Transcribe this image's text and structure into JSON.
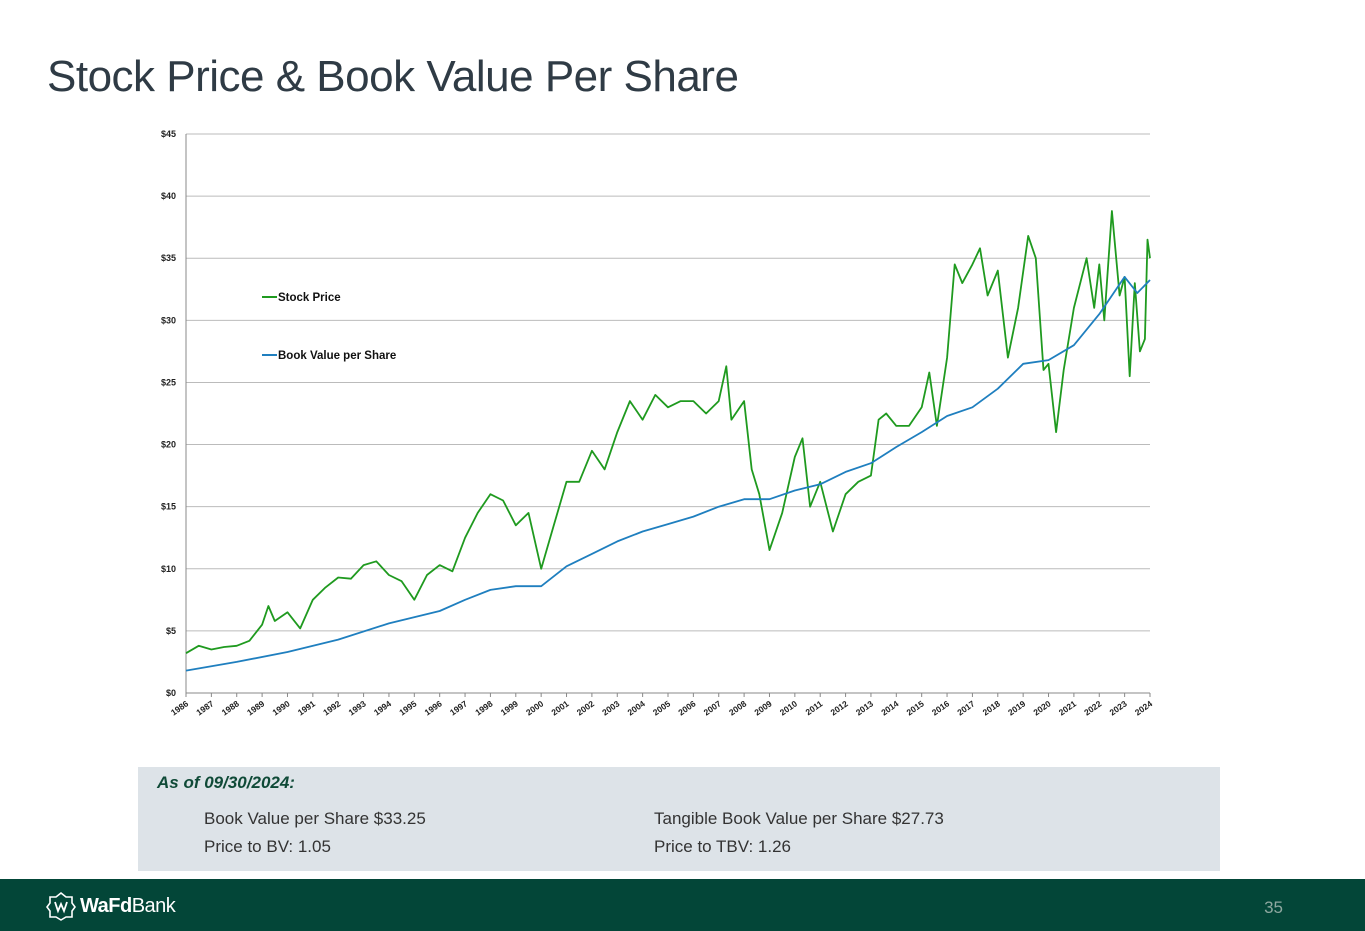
{
  "header": {
    "title": "Stock Price & Book Value Per Share"
  },
  "chart_data": {
    "type": "line",
    "xlim": [
      1986,
      2024
    ],
    "xticks": [
      1986,
      1987,
      1988,
      1989,
      1990,
      1991,
      1992,
      1993,
      1994,
      1995,
      1996,
      1997,
      1998,
      1999,
      2000,
      2001,
      2002,
      2003,
      2004,
      2005,
      2006,
      2007,
      2008,
      2009,
      2010,
      2011,
      2012,
      2013,
      2014,
      2015,
      2016,
      2017,
      2018,
      2019,
      2020,
      2021,
      2022,
      2023,
      2024
    ],
    "ylim": [
      0,
      45
    ],
    "yticks": [
      {
        "value": 0,
        "label": "$0"
      },
      {
        "value": 5,
        "label": "$5"
      },
      {
        "value": 10,
        "label": "$10"
      },
      {
        "value": 15,
        "label": "$15"
      },
      {
        "value": 20,
        "label": "$20"
      },
      {
        "value": 25,
        "label": "$25"
      },
      {
        "value": 30,
        "label": "$30"
      },
      {
        "value": 35,
        "label": "$35"
      },
      {
        "value": 40,
        "label": "$40"
      },
      {
        "value": 45,
        "label": "$45"
      }
    ],
    "grid": true,
    "legend": "left",
    "series": [
      {
        "name": "Stock Price",
        "color": "#1f9a1f",
        "x": [
          1986,
          1986.5,
          1987,
          1987.5,
          1988,
          1988.5,
          1989,
          1989.25,
          1989.5,
          1990,
          1990.5,
          1991,
          1991.5,
          1992,
          1992.5,
          1993,
          1993.5,
          1994,
          1994.5,
          1995,
          1995.5,
          1996,
          1996.5,
          1997,
          1997.5,
          1998,
          1998.5,
          1999,
          1999.5,
          2000,
          2000.5,
          2001,
          2001.5,
          2002,
          2002.5,
          2003,
          2003.5,
          2004,
          2004.5,
          2005,
          2005.5,
          2006,
          2006.5,
          2007,
          2007.3,
          2007.5,
          2008,
          2008.3,
          2008.6,
          2009,
          2009.5,
          2010,
          2010.3,
          2010.6,
          2011,
          2011.5,
          2012,
          2012.5,
          2013,
          2013.3,
          2013.6,
          2014,
          2014.5,
          2015,
          2015.3,
          2015.6,
          2016,
          2016.3,
          2016.6,
          2017,
          2017.3,
          2017.6,
          2018,
          2018.4,
          2018.8,
          2019.2,
          2019.5,
          2019.8,
          2020,
          2020.3,
          2020.6,
          2021,
          2021.5,
          2021.8,
          2022,
          2022.2,
          2022.5,
          2022.8,
          2023,
          2023.2,
          2023.4,
          2023.6,
          2023.8,
          2023.9,
          2024
        ],
        "values": [
          3.2,
          3.8,
          3.5,
          3.7,
          3.8,
          4.2,
          5.5,
          7.0,
          5.8,
          6.5,
          5.2,
          7.5,
          8.5,
          9.3,
          9.2,
          10.3,
          10.6,
          9.5,
          9.0,
          7.5,
          9.5,
          10.3,
          9.8,
          12.5,
          14.5,
          16.0,
          15.5,
          13.5,
          14.5,
          10.0,
          13.5,
          17.0,
          17.0,
          19.5,
          18.0,
          21.0,
          23.5,
          22.0,
          24.0,
          23.0,
          23.5,
          23.5,
          22.5,
          23.5,
          26.3,
          22.0,
          23.5,
          18.0,
          16.0,
          11.5,
          14.5,
          19.0,
          20.5,
          15.0,
          17.0,
          13.0,
          16.0,
          17.0,
          17.5,
          22.0,
          22.5,
          21.5,
          21.5,
          23.0,
          25.8,
          21.5,
          27.0,
          34.5,
          33.0,
          34.5,
          35.8,
          32.0,
          34.0,
          27.0,
          31.0,
          36.8,
          35.0,
          26.0,
          26.5,
          21.0,
          26.0,
          31.0,
          35.0,
          31.0,
          34.5,
          30.0,
          38.8,
          32.0,
          33.5,
          25.5,
          33.0,
          27.5,
          28.5,
          36.5,
          35.0
        ]
      },
      {
        "name": "Book Value per Share",
        "color": "#1f7fbf",
        "x": [
          1986,
          1988,
          1990,
          1992,
          1994,
          1996,
          1997,
          1998,
          1999,
          2000,
          2001,
          2002,
          2003,
          2004,
          2005,
          2006,
          2007,
          2008,
          2009,
          2010,
          2011,
          2012,
          2013,
          2014,
          2015,
          2016,
          2017,
          2018,
          2019,
          2020,
          2021,
          2022,
          2023,
          2023.5,
          2024
        ],
        "values": [
          1.8,
          2.5,
          3.3,
          4.3,
          5.6,
          6.6,
          7.5,
          8.3,
          8.6,
          8.6,
          10.2,
          11.2,
          12.2,
          13.0,
          13.6,
          14.2,
          15.0,
          15.6,
          15.6,
          16.3,
          16.8,
          17.8,
          18.5,
          19.8,
          21.0,
          22.3,
          23.0,
          24.5,
          26.5,
          26.8,
          28.0,
          30.5,
          33.5,
          32.2,
          33.25
        ]
      }
    ]
  },
  "panel": {
    "heading": "As of 09/30/2024:",
    "items": [
      "Book Value per Share $33.25",
      "Tangible Book Value per Share $27.73",
      "Price to BV:  1.05",
      "Price to TBV:  1.26"
    ]
  },
  "footer": {
    "logo_bold": "WaFd",
    "logo_light": "Bank",
    "page": "35"
  }
}
